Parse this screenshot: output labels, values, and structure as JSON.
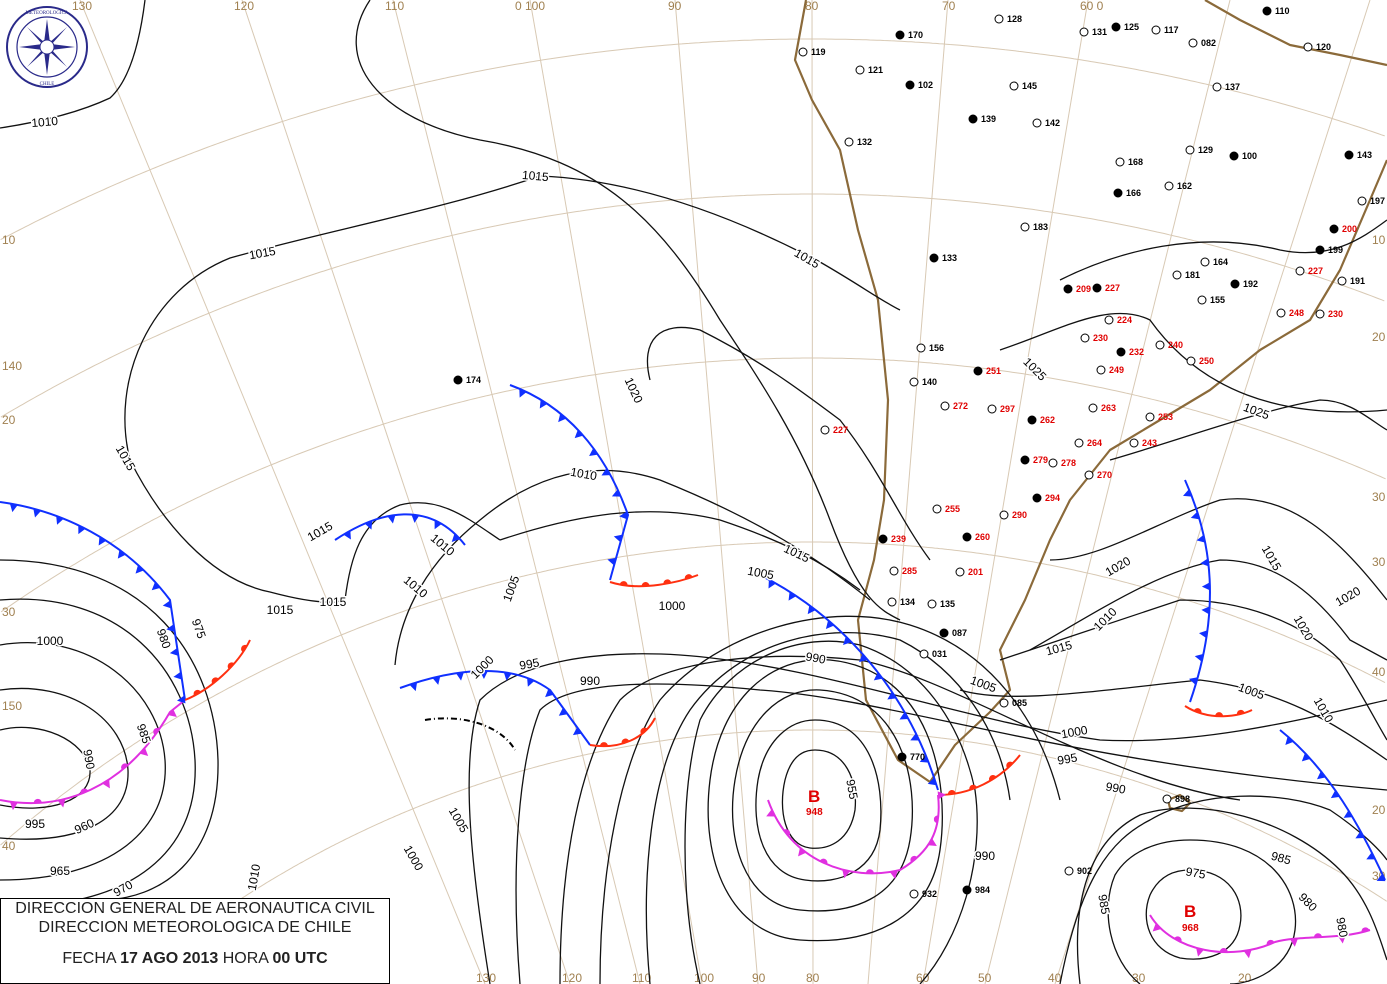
{
  "header": {
    "line1": "DIRECCION GENERAL DE AERONAUTICA CIVIL",
    "line2": "DIRECCION METEOROLOGICA DE CHILE",
    "date_label": "FECHA",
    "date": "17 AGO 2013",
    "hour_label": "HORA",
    "hour": "00 UTC"
  },
  "logo": {
    "text": "DIRECCION METEOROLOGICA CHILE",
    "color": "#2a2a8a"
  },
  "colors": {
    "cold_front": "#1030ff",
    "warm_front": "#ff3010",
    "occluded_front": "#e030e0",
    "low_center": "#e00000",
    "coastline": "#8b6a3a",
    "grid": "#d8c9b4"
  },
  "grid_labels": [
    "130",
    "120",
    "110",
    "0 100",
    "90",
    "80",
    "70",
    "60 0",
    "130",
    "120",
    "110",
    "100",
    "90",
    "80",
    "60",
    "50",
    "40",
    "30",
    "20",
    "10",
    "140",
    "20",
    "30",
    "150",
    "40",
    "10",
    "20",
    "30",
    "30",
    "40",
    "20",
    "30"
  ],
  "pressure_centers": [
    {
      "symbol": "B",
      "value": "948"
    },
    {
      "symbol": "B",
      "value": "968"
    }
  ],
  "isobar_labels": [
    "1010",
    "1015",
    "1015",
    "1015",
    "1015",
    "1015",
    "1015",
    "1015",
    "1010",
    "1005",
    "1000",
    "995",
    "990",
    "985",
    "980",
    "975",
    "970",
    "965",
    "960",
    "955",
    "1000",
    "995",
    "1000",
    "1005",
    "1010",
    "1010",
    "1015",
    "1020",
    "1020",
    "1025",
    "1025",
    "1020",
    "1015",
    "1010",
    "1005",
    "1000",
    "995",
    "990",
    "985",
    "980",
    "975",
    "985",
    "980",
    "990",
    "1005",
    "1010",
    "1015",
    "1020",
    "990",
    "990",
    "1000",
    "1005",
    "1010"
  ],
  "stations": [
    {
      "id": "170",
      "color": "#000000"
    },
    {
      "id": "128",
      "color": "#000000"
    },
    {
      "id": "131",
      "color": "#000000"
    },
    {
      "id": "125",
      "color": "#000000"
    },
    {
      "id": "117",
      "color": "#000000"
    },
    {
      "id": "082",
      "color": "#000000"
    },
    {
      "id": "110",
      "color": "#000000"
    },
    {
      "id": "119",
      "color": "#000000"
    },
    {
      "id": "121",
      "color": "#000000"
    },
    {
      "id": "102",
      "color": "#000000"
    },
    {
      "id": "145",
      "color": "#000000"
    },
    {
      "id": "142",
      "color": "#000000"
    },
    {
      "id": "139",
      "color": "#000000"
    },
    {
      "id": "132",
      "color": "#000000"
    },
    {
      "id": "168",
      "color": "#000000"
    },
    {
      "id": "166",
      "color": "#000000"
    },
    {
      "id": "162",
      "color": "#000000"
    },
    {
      "id": "183",
      "color": "#000000"
    },
    {
      "id": "133",
      "color": "#000000"
    },
    {
      "id": "156",
      "color": "#000000"
    },
    {
      "id": "140",
      "color": "#000000"
    },
    {
      "id": "174",
      "color": "#000000"
    },
    {
      "id": "134",
      "color": "#000000"
    },
    {
      "id": "135",
      "color": "#000000"
    },
    {
      "id": "087",
      "color": "#000000"
    },
    {
      "id": "031",
      "color": "#000000"
    },
    {
      "id": "085",
      "color": "#000000"
    },
    {
      "id": "770",
      "color": "#000000"
    },
    {
      "id": "898",
      "color": "#000000"
    },
    {
      "id": "902",
      "color": "#000000"
    },
    {
      "id": "984",
      "color": "#000000"
    },
    {
      "id": "932",
      "color": "#000000"
    },
    {
      "id": "129",
      "color": "#000000"
    },
    {
      "id": "100",
      "color": "#000000"
    },
    {
      "id": "137",
      "color": "#000000"
    },
    {
      "id": "155",
      "color": "#000000"
    },
    {
      "id": "192",
      "color": "#000000"
    },
    {
      "id": "181",
      "color": "#000000"
    },
    {
      "id": "164",
      "color": "#000000"
    },
    {
      "id": "199",
      "color": "#000000"
    },
    {
      "id": "191",
      "color": "#000000"
    },
    {
      "id": "197",
      "color": "#000000"
    },
    {
      "id": "143",
      "color": "#000000"
    },
    {
      "id": "120",
      "color": "#000000"
    },
    {
      "id": "227",
      "color": "#e00000"
    },
    {
      "id": "209",
      "color": "#e00000"
    },
    {
      "id": "224",
      "color": "#e00000"
    },
    {
      "id": "230",
      "color": "#e00000"
    },
    {
      "id": "251",
      "color": "#e00000"
    },
    {
      "id": "272",
      "color": "#e00000"
    },
    {
      "id": "297",
      "color": "#e00000"
    },
    {
      "id": "262",
      "color": "#e00000"
    },
    {
      "id": "263",
      "color": "#e00000"
    },
    {
      "id": "264",
      "color": "#e00000"
    },
    {
      "id": "279",
      "color": "#e00000"
    },
    {
      "id": "278",
      "color": "#e00000"
    },
    {
      "id": "270",
      "color": "#e00000"
    },
    {
      "id": "294",
      "color": "#e00000"
    },
    {
      "id": "290",
      "color": "#e00000"
    },
    {
      "id": "255",
      "color": "#e00000"
    },
    {
      "id": "239",
      "color": "#e00000"
    },
    {
      "id": "285",
      "color": "#e00000"
    },
    {
      "id": "201",
      "color": "#e00000"
    },
    {
      "id": "260",
      "color": "#e00000"
    },
    {
      "id": "240",
      "color": "#e00000"
    },
    {
      "id": "249",
      "color": "#e00000"
    },
    {
      "id": "232",
      "color": "#e00000"
    },
    {
      "id": "253",
      "color": "#e00000"
    },
    {
      "id": "243",
      "color": "#e00000"
    },
    {
      "id": "227",
      "color": "#e00000"
    },
    {
      "id": "248",
      "color": "#e00000"
    },
    {
      "id": "250",
      "color": "#e00000"
    },
    {
      "id": "200",
      "color": "#e00000"
    },
    {
      "id": "227",
      "color": "#e00000"
    },
    {
      "id": "230",
      "color": "#e00000"
    }
  ]
}
